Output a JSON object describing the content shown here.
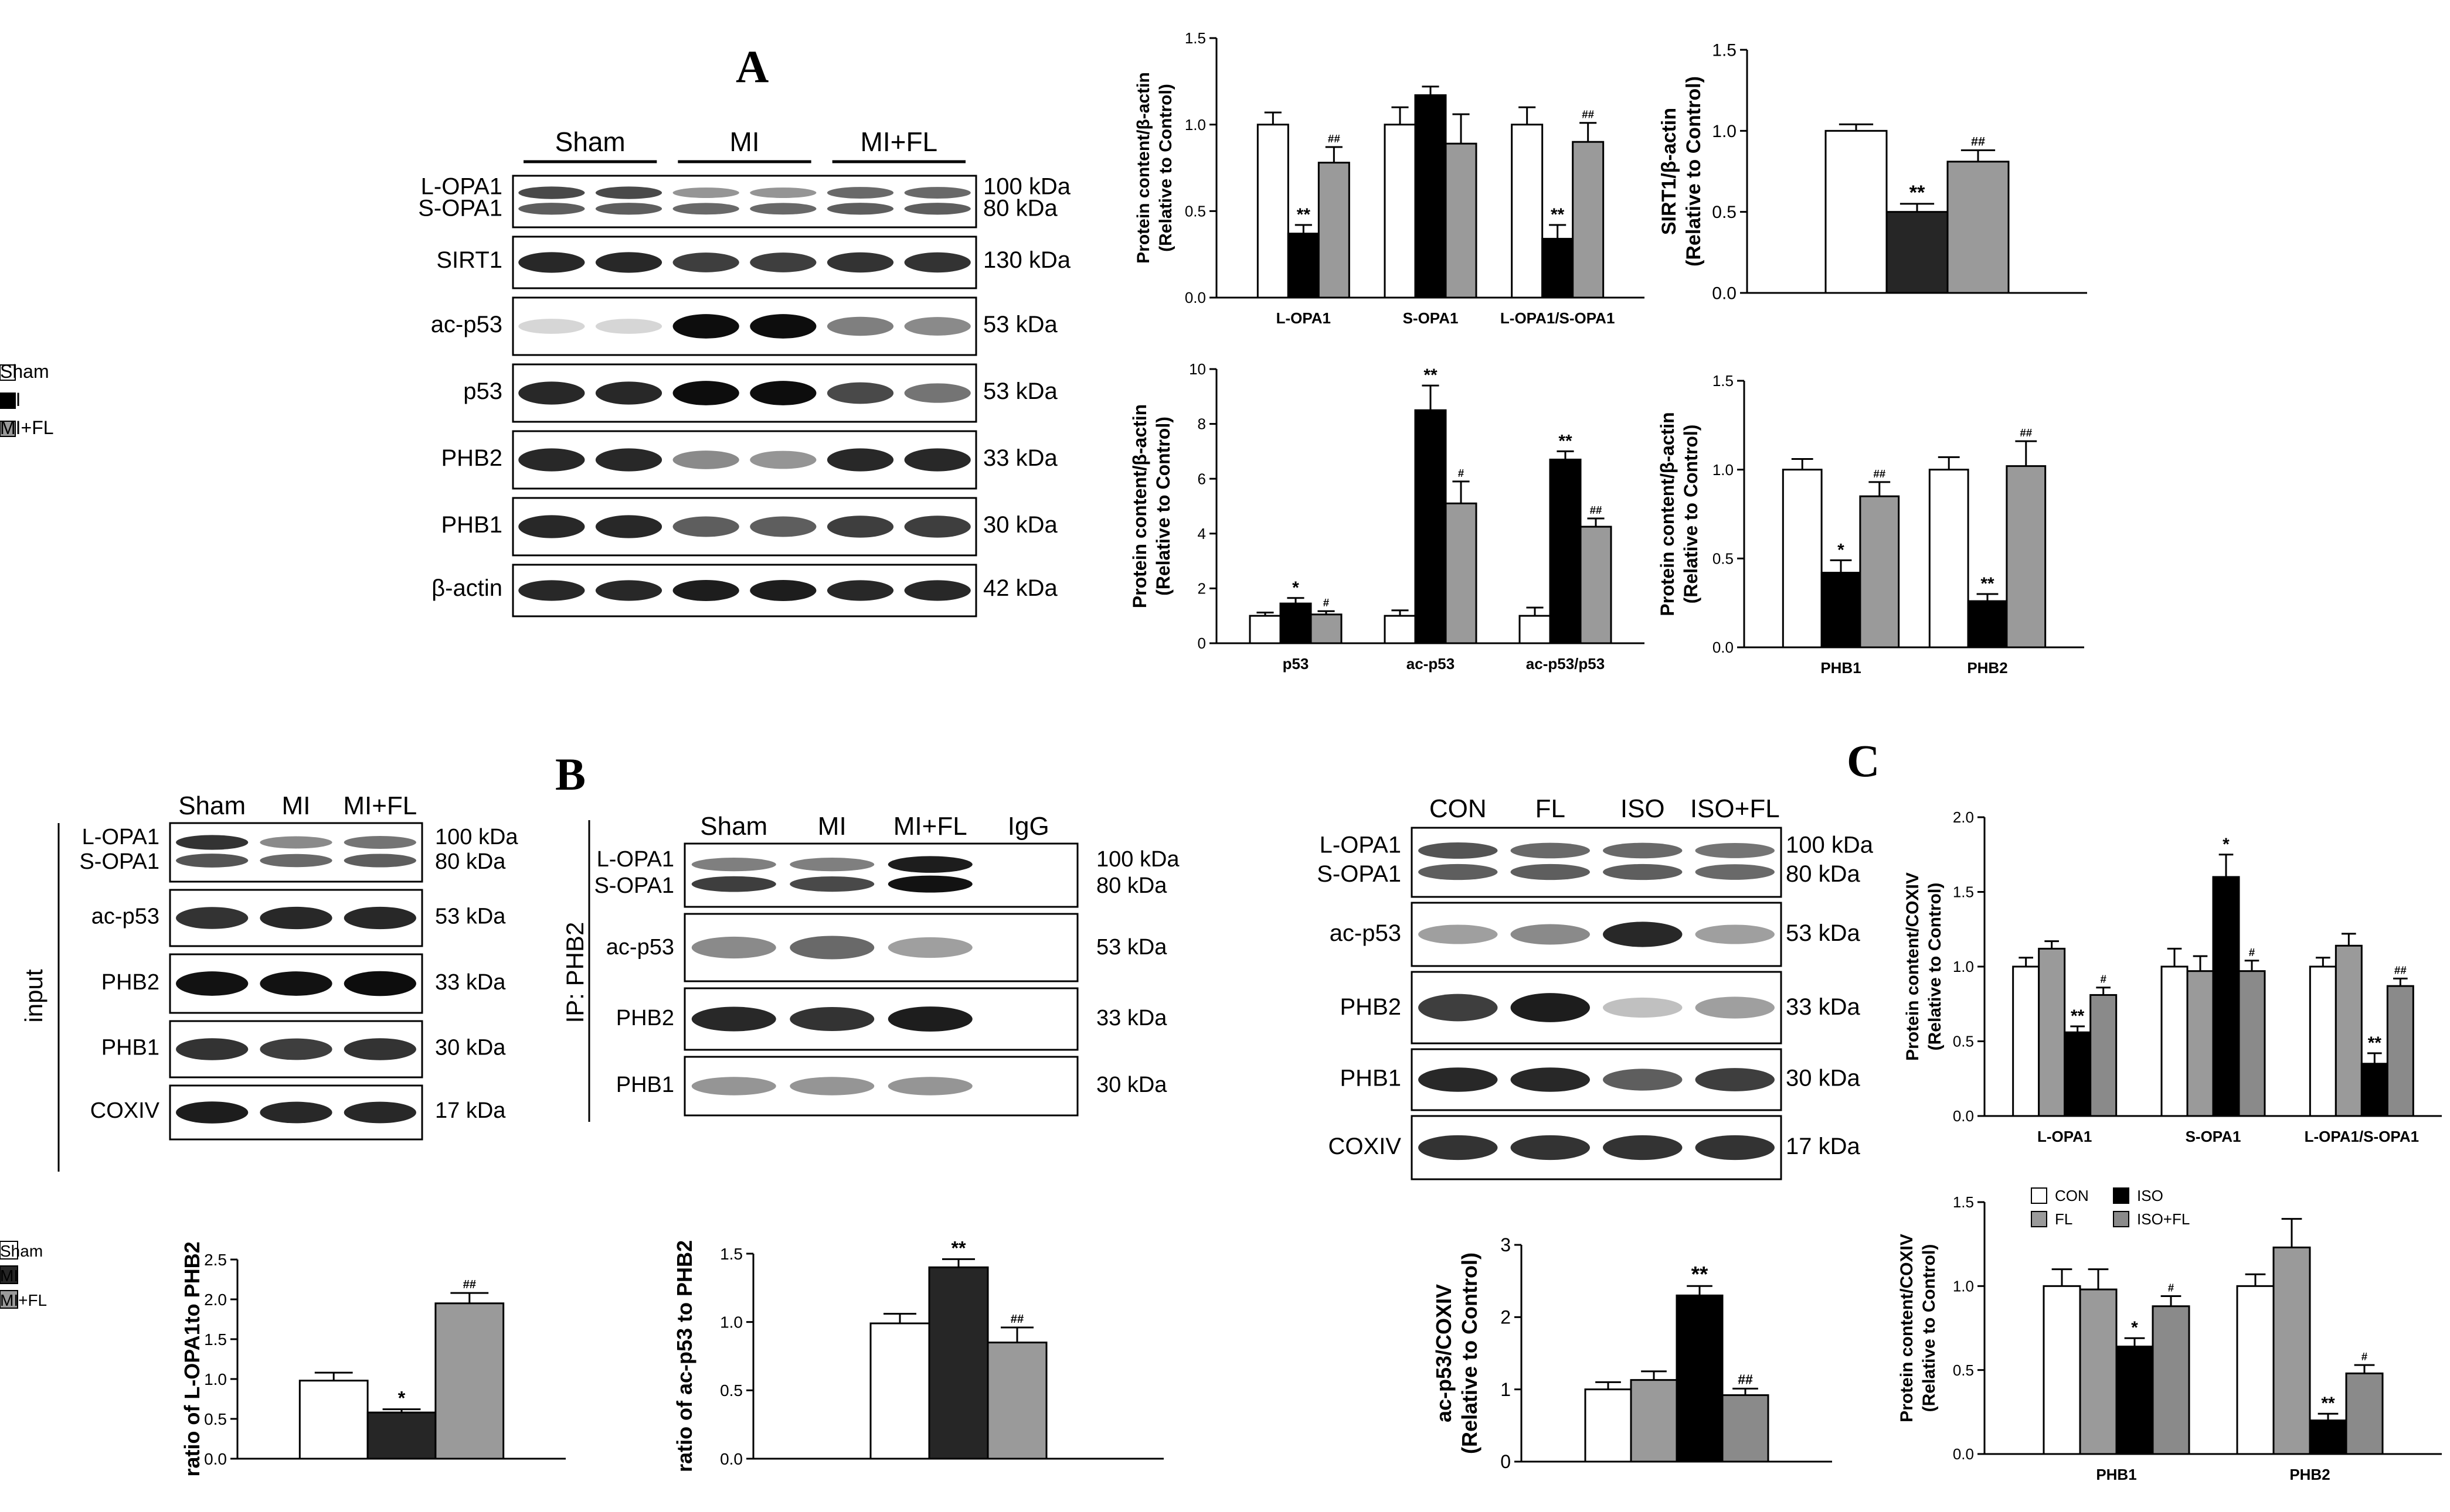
{
  "panel_labels": {
    "a": "A",
    "b": "B",
    "c": "C"
  },
  "legend_main": [
    "Sham",
    "MI",
    "MI+FL"
  ],
  "legend_iso": [
    "CON",
    "ISO",
    "FL",
    "ISO+FL"
  ],
  "colors": {
    "white": "#ffffff",
    "black": "#000000",
    "dark": "#262626",
    "gray": "#9a9a9a",
    "mid": "#8a8a8a"
  },
  "western_blots": [
    {
      "id": "blot-a",
      "groups": [
        "Sham",
        "MI",
        "MI+FL"
      ],
      "lanes": 6,
      "rows": [
        {
          "labels": [
            "L-OPA1",
            "S-OPA1"
          ],
          "kda": [
            "100 kDa",
            "80 kDa"
          ]
        },
        {
          "labels": [
            "SIRT1"
          ],
          "kda": [
            "130 kDa"
          ]
        },
        {
          "labels": [
            "ac-p53"
          ],
          "kda": [
            "53 kDa"
          ]
        },
        {
          "labels": [
            "p53"
          ],
          "kda": [
            "53 kDa"
          ]
        },
        {
          "labels": [
            "PHB2"
          ],
          "kda": [
            "33 kDa"
          ]
        },
        {
          "labels": [
            "PHB1"
          ],
          "kda": [
            "30 kDa"
          ]
        },
        {
          "labels": [
            "β-actin"
          ],
          "kda": [
            "42 kDa"
          ]
        }
      ]
    },
    {
      "id": "blot-b-input",
      "side_label": "input",
      "columns": [
        "Sham",
        "MI",
        "MI+FL"
      ],
      "lanes": 3,
      "rows": [
        {
          "labels": [
            "L-OPA1",
            "S-OPA1"
          ],
          "kda": [
            "100 kDa",
            "80 kDa"
          ]
        },
        {
          "labels": [
            "ac-p53"
          ],
          "kda": [
            "53 kDa"
          ]
        },
        {
          "labels": [
            "PHB2"
          ],
          "kda": [
            "33 kDa"
          ]
        },
        {
          "labels": [
            "PHB1"
          ],
          "kda": [
            "30 kDa"
          ]
        },
        {
          "labels": [
            "COXIV"
          ],
          "kda": [
            "17 kDa"
          ]
        }
      ]
    },
    {
      "id": "blot-b-ip",
      "side_label": "IP: PHB2",
      "columns": [
        "Sham",
        "MI",
        "MI+FL",
        "IgG"
      ],
      "lanes": 4,
      "rows": [
        {
          "labels": [
            "L-OPA1",
            "S-OPA1"
          ],
          "kda": [
            "100 kDa",
            "80 kDa"
          ]
        },
        {
          "labels": [
            "ac-p53"
          ],
          "kda": [
            "53 kDa"
          ]
        },
        {
          "labels": [
            "PHB2"
          ],
          "kda": [
            "33 kDa"
          ]
        },
        {
          "labels": [
            "PHB1"
          ],
          "kda": [
            "30 kDa"
          ]
        }
      ]
    },
    {
      "id": "blot-c",
      "columns": [
        "CON",
        "FL",
        "ISO",
        "ISO+FL"
      ],
      "lanes": 4,
      "rows": [
        {
          "labels": [
            "L-OPA1",
            "S-OPA1"
          ],
          "kda": [
            "100 kDa",
            "80 kDa"
          ]
        },
        {
          "labels": [
            "ac-p53"
          ],
          "kda": [
            "53 kDa"
          ]
        },
        {
          "labels": [
            "PHB2"
          ],
          "kda": [
            "33 kDa"
          ]
        },
        {
          "labels": [
            "PHB1"
          ],
          "kda": [
            "30 kDa"
          ]
        },
        {
          "labels": [
            "COXIV"
          ],
          "kda": [
            "17 kDa"
          ]
        }
      ]
    }
  ],
  "chart_data": [
    {
      "id": "a-opa1",
      "type": "bar",
      "ylabel": [
        "Protein content/β-actin",
        "(Relative to Control)"
      ],
      "ylim": [
        0,
        1.5
      ],
      "yticks": [
        "0.0",
        "0.5",
        "1.0",
        "1.5"
      ],
      "categories": [
        "L-OPA1",
        "S-OPA1",
        "L-OPA1/S-OPA1"
      ],
      "series": [
        {
          "name": "Sham",
          "values": [
            1.0,
            1.0,
            1.0
          ],
          "err": [
            0.07,
            0.1,
            0.1
          ],
          "sig": [
            "",
            "",
            ""
          ]
        },
        {
          "name": "MI",
          "values": [
            0.37,
            1.17,
            0.34
          ],
          "err": [
            0.05,
            0.05,
            0.08
          ],
          "sig": [
            "**",
            "",
            "**"
          ]
        },
        {
          "name": "MI+FL",
          "values": [
            0.78,
            0.89,
            0.9
          ],
          "err": [
            0.09,
            0.17,
            0.11
          ],
          "sig": [
            "##",
            "",
            "##"
          ]
        }
      ]
    },
    {
      "id": "a-sirt1",
      "type": "bar",
      "ylabel": [
        "SIRT1/β-actin",
        "(Relative to Control)"
      ],
      "ylim": [
        0,
        1.5
      ],
      "yticks": [
        "0.0",
        "0.5",
        "1.0",
        "1.5"
      ],
      "categories": [
        ""
      ],
      "series": [
        {
          "name": "Sham",
          "values": [
            1.0
          ],
          "err": [
            0.04
          ],
          "sig": [
            ""
          ]
        },
        {
          "name": "MI",
          "values": [
            0.5
          ],
          "err": [
            0.05
          ],
          "sig": [
            "**"
          ]
        },
        {
          "name": "MI+FL",
          "values": [
            0.81
          ],
          "err": [
            0.07
          ],
          "sig": [
            "##"
          ]
        }
      ]
    },
    {
      "id": "a-p53",
      "type": "bar",
      "ylabel": [
        "Protein content/β-actin",
        "(Relative to Control)"
      ],
      "ylim": [
        0,
        10
      ],
      "yticks": [
        "0",
        "2",
        "4",
        "6",
        "8",
        "10"
      ],
      "categories": [
        "p53",
        "ac-p53",
        "ac-p53/p53"
      ],
      "series": [
        {
          "name": "Sham",
          "values": [
            1.0,
            1.0,
            1.0
          ],
          "err": [
            0.12,
            0.2,
            0.3
          ],
          "sig": [
            "",
            "",
            ""
          ]
        },
        {
          "name": "MI",
          "values": [
            1.45,
            8.5,
            6.7
          ],
          "err": [
            0.2,
            0.9,
            0.3
          ],
          "sig": [
            "*",
            "**",
            "**"
          ]
        },
        {
          "name": "MI+FL",
          "values": [
            1.05,
            5.1,
            4.25
          ],
          "err": [
            0.12,
            0.8,
            0.3
          ],
          "sig": [
            "#",
            "#",
            "##"
          ]
        }
      ]
    },
    {
      "id": "a-phb",
      "type": "bar",
      "ylabel": [
        "Protein content/β-actin",
        "(Relative to Control)"
      ],
      "ylim": [
        0,
        1.5
      ],
      "yticks": [
        "0.0",
        "0.5",
        "1.0",
        "1.5"
      ],
      "categories": [
        "PHB1",
        "PHB2"
      ],
      "legend": "top-left",
      "series": [
        {
          "name": "Sham",
          "values": [
            1.0,
            1.0
          ],
          "err": [
            0.06,
            0.07
          ],
          "sig": [
            "",
            ""
          ]
        },
        {
          "name": "MI",
          "values": [
            0.42,
            0.26
          ],
          "err": [
            0.07,
            0.04
          ],
          "sig": [
            "*",
            "**"
          ]
        },
        {
          "name": "MI+FL",
          "values": [
            0.85,
            1.02
          ],
          "err": [
            0.08,
            0.14
          ],
          "sig": [
            "##",
            "##"
          ]
        }
      ]
    },
    {
      "id": "b-input",
      "type": "bar",
      "ylabel": [
        "ratio of L-OPA1to PHB2"
      ],
      "ylim": [
        0,
        2.5
      ],
      "yticks": [
        "0.0",
        "0.5",
        "1.0",
        "1.5",
        "2.0",
        "2.5"
      ],
      "categories": [
        ""
      ],
      "series": [
        {
          "name": "Sham",
          "values": [
            0.98
          ],
          "err": [
            0.1
          ],
          "sig": [
            ""
          ]
        },
        {
          "name": "MI",
          "values": [
            0.58
          ],
          "err": [
            0.04
          ],
          "sig": [
            "*"
          ]
        },
        {
          "name": "MI+FL",
          "values": [
            1.95
          ],
          "err": [
            0.13
          ],
          "sig": [
            "##"
          ]
        }
      ]
    },
    {
      "id": "b-ip",
      "type": "bar",
      "ylabel": [
        "ratio of ac-p53 to PHB2"
      ],
      "ylim": [
        0,
        1.5
      ],
      "yticks": [
        "0.0",
        "0.5",
        "1.0",
        "1.5"
      ],
      "categories": [
        ""
      ],
      "legend": "top-right",
      "series": [
        {
          "name": "Sham",
          "values": [
            0.99
          ],
          "err": [
            0.07
          ],
          "sig": [
            ""
          ]
        },
        {
          "name": "MI",
          "values": [
            1.4
          ],
          "err": [
            0.06
          ],
          "sig": [
            "**"
          ]
        },
        {
          "name": "MI+FL",
          "values": [
            0.85
          ],
          "err": [
            0.11
          ],
          "sig": [
            "##"
          ]
        }
      ]
    },
    {
      "id": "c-acp53",
      "type": "bar",
      "ylabel": [
        "ac-p53/COXIV",
        "(Relative to Control)"
      ],
      "ylim": [
        0,
        3
      ],
      "yticks": [
        "0",
        "1",
        "2",
        "3"
      ],
      "categories": [
        ""
      ],
      "series": [
        {
          "name": "CON",
          "values": [
            1.0
          ],
          "err": [
            0.1
          ],
          "sig": [
            ""
          ]
        },
        {
          "name": "FL",
          "values": [
            1.13
          ],
          "err": [
            0.12
          ],
          "sig": [
            ""
          ]
        },
        {
          "name": "ISO",
          "values": [
            2.3
          ],
          "err": [
            0.13
          ],
          "sig": [
            "**"
          ]
        },
        {
          "name": "ISO+FL",
          "values": [
            0.92
          ],
          "err": [
            0.09
          ],
          "sig": [
            "##"
          ]
        }
      ]
    },
    {
      "id": "c-opa1",
      "type": "bar",
      "ylabel": [
        "Protein content/COXIV",
        "(Relative to Control)"
      ],
      "ylim": [
        0,
        2.0
      ],
      "yticks": [
        "0.0",
        "0.5",
        "1.0",
        "1.5",
        "2.0"
      ],
      "categories": [
        "L-OPA1",
        "S-OPA1",
        "L-OPA1/S-OPA1"
      ],
      "series": [
        {
          "name": "CON",
          "values": [
            1.0,
            1.0,
            1.0
          ],
          "err": [
            0.06,
            0.12,
            0.06
          ],
          "sig": [
            "",
            "",
            ""
          ]
        },
        {
          "name": "FL",
          "values": [
            1.12,
            0.97,
            1.14
          ],
          "err": [
            0.05,
            0.1,
            0.08
          ],
          "sig": [
            "",
            "",
            ""
          ]
        },
        {
          "name": "ISO",
          "values": [
            0.56,
            1.6,
            0.35
          ],
          "err": [
            0.04,
            0.15,
            0.07
          ],
          "sig": [
            "**",
            "*",
            "**"
          ]
        },
        {
          "name": "ISO+FL",
          "values": [
            0.81,
            0.97,
            0.87
          ],
          "err": [
            0.05,
            0.07,
            0.05
          ],
          "sig": [
            "#",
            "#",
            "##"
          ]
        }
      ]
    },
    {
      "id": "c-phb",
      "type": "bar",
      "ylabel": [
        "Protein content/COXIV",
        "(Relative to Control)"
      ],
      "ylim": [
        0,
        1.5
      ],
      "yticks": [
        "0.0",
        "0.5",
        "1.0",
        "1.5"
      ],
      "categories": [
        "PHB1",
        "PHB2"
      ],
      "legend": "top-left",
      "series": [
        {
          "name": "CON",
          "values": [
            1.0,
            1.0
          ],
          "err": [
            0.1,
            0.07
          ],
          "sig": [
            "",
            ""
          ]
        },
        {
          "name": "FL",
          "values": [
            0.98,
            1.23
          ],
          "err": [
            0.12,
            0.17
          ],
          "sig": [
            "",
            ""
          ]
        },
        {
          "name": "ISO",
          "values": [
            0.64,
            0.2
          ],
          "err": [
            0.05,
            0.04
          ],
          "sig": [
            "*",
            "**"
          ]
        },
        {
          "name": "ISO+FL",
          "values": [
            0.88,
            0.48
          ],
          "err": [
            0.06,
            0.05
          ],
          "sig": [
            "#",
            "#"
          ]
        }
      ]
    }
  ]
}
